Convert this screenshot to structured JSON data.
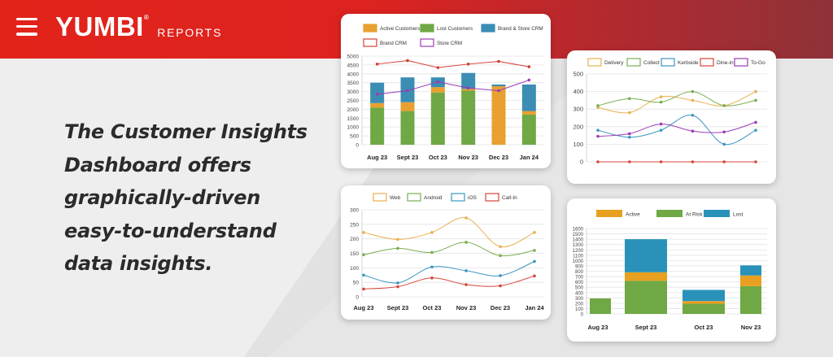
{
  "brand": {
    "name": "YUMBI",
    "suffix": "REPORTS",
    "reg": "®"
  },
  "tagline": [
    "The Customer Insights",
    "Dashboard offers",
    "graphically-driven",
    "easy-to-understand",
    "data insights."
  ],
  "chart_data": [
    {
      "id": "customers",
      "type": "bar",
      "categories": [
        "Aug 23",
        "Sept 23",
        "Oct 23",
        "Nov 23",
        "Dec 23",
        "Jan 24"
      ],
      "ylim": [
        0,
        5000
      ],
      "yticks": [
        0,
        500,
        1000,
        1500,
        2000,
        2500,
        3000,
        3500,
        4000,
        4500,
        5000
      ],
      "legend": [
        "Active Customers",
        "Lost Customers",
        "Brand & Store CRM",
        "Brand CRM",
        "Store CRM"
      ],
      "series": [
        {
          "name": "Lost Customers",
          "type": "bar",
          "color": "#6fa844",
          "values": [
            2100,
            1900,
            2950,
            3050,
            0,
            1700
          ]
        },
        {
          "name": "Active Customers",
          "type": "bar",
          "color": "#e8a030",
          "values": [
            250,
            500,
            300,
            100,
            3300,
            200
          ]
        },
        {
          "name": "Brand & Store CRM",
          "type": "bar",
          "color": "#3b8db3",
          "values": [
            1150,
            1400,
            550,
            900,
            100,
            1500
          ]
        },
        {
          "name": "Brand CRM",
          "type": "line",
          "color": "#d43f33",
          "values": [
            4550,
            4750,
            4350,
            4550,
            4700,
            4400
          ]
        },
        {
          "name": "Store CRM",
          "type": "line",
          "color": "#9b3bb5",
          "values": [
            2850,
            3050,
            3550,
            3200,
            3050,
            3650
          ]
        }
      ]
    },
    {
      "id": "orders",
      "type": "line",
      "categories": [
        "",
        "",
        "",
        "",
        "",
        ""
      ],
      "ylim": [
        0,
        500
      ],
      "yticks": [
        0,
        100,
        200,
        300,
        400,
        500
      ],
      "series": [
        {
          "name": "Delivery",
          "color": "#e8b050",
          "values": [
            310,
            280,
            370,
            350,
            320,
            400
          ]
        },
        {
          "name": "Collect",
          "color": "#7aad50",
          "values": [
            320,
            360,
            340,
            400,
            320,
            350
          ]
        },
        {
          "name": "Kerbside",
          "color": "#3b95c0",
          "values": [
            180,
            140,
            180,
            265,
            100,
            180
          ]
        },
        {
          "name": "Dine-in",
          "color": "#d4473a",
          "values": [
            0,
            0,
            0,
            0,
            0,
            0
          ]
        },
        {
          "name": "To-Go",
          "color": "#9b3bb5",
          "values": [
            145,
            160,
            215,
            175,
            170,
            225
          ]
        }
      ]
    },
    {
      "id": "channels",
      "type": "line",
      "categories": [
        "Aug 23",
        "Sept 23",
        "Oct 23",
        "Nov 23",
        "Dec 23",
        "Jan 24"
      ],
      "ylim": [
        0,
        300
      ],
      "yticks": [
        0,
        50,
        100,
        150,
        200,
        250,
        300
      ],
      "series": [
        {
          "name": "Web",
          "color": "#e8b050",
          "values": [
            222,
            198,
            222,
            272,
            173,
            222
          ]
        },
        {
          "name": "Android",
          "color": "#7aad50",
          "values": [
            145,
            167,
            153,
            188,
            142,
            160
          ]
        },
        {
          "name": "iOS",
          "color": "#3b95c0",
          "values": [
            75,
            48,
            103,
            90,
            73,
            122
          ]
        },
        {
          "name": "Call-In",
          "color": "#d4473a",
          "values": [
            27,
            35,
            65,
            42,
            38,
            72
          ]
        }
      ]
    },
    {
      "id": "status",
      "type": "bar",
      "categories": [
        "Aug 23",
        "Sept 23",
        "Oct 23",
        "Nov 23"
      ],
      "ylim": [
        0,
        1600
      ],
      "yticks": [
        0,
        100,
        200,
        300,
        400,
        500,
        600,
        700,
        800,
        900,
        1000,
        1100,
        1200,
        1300,
        1400,
        1500,
        1600
      ],
      "series": [
        {
          "name": "At Risk",
          "color": "#6fa844",
          "values": [
            290,
            620,
            190,
            520
          ]
        },
        {
          "name": "Active",
          "color": "#e8a020",
          "values": [
            0,
            160,
            50,
            200
          ]
        },
        {
          "name": "Lost",
          "color": "#2a92b8",
          "values": [
            0,
            620,
            210,
            190
          ]
        }
      ],
      "legend_order": [
        "Active",
        "At Risk",
        "Lost"
      ]
    }
  ]
}
